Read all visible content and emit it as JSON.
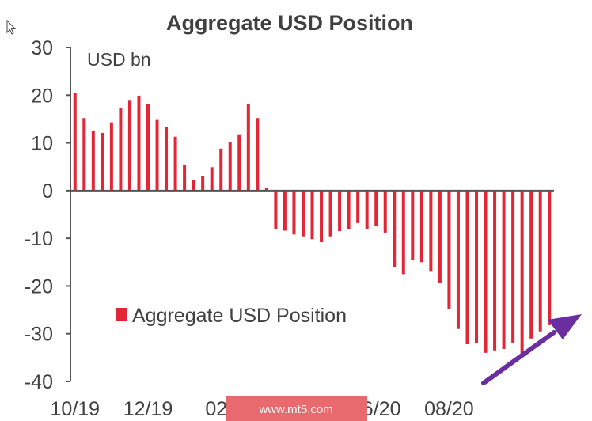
{
  "chart_data": {
    "type": "bar",
    "title": "Aggregate USD Position",
    "unit_label": "USD bn",
    "ylim": [
      -40,
      30
    ],
    "yticks": [
      30,
      20,
      10,
      0,
      -10,
      -20,
      -30,
      -40
    ],
    "xtick_labels": [
      "10/19",
      "12/19",
      "02/20",
      "06/20",
      "08/20"
    ],
    "legend": {
      "label": "Aggregate USD Position",
      "placement": "left"
    },
    "series": [
      {
        "name": "Aggregate USD Position",
        "color": "#e32636",
        "values": [
          20.5,
          15.2,
          12.6,
          12.1,
          14.3,
          17.3,
          19.0,
          19.9,
          18.2,
          14.8,
          13.3,
          11.3,
          5.3,
          2.2,
          3.0,
          4.9,
          8.8,
          10.2,
          11.8,
          18.2,
          15.2,
          0.5,
          -8.0,
          -8.4,
          -9.2,
          -9.6,
          -10.2,
          -10.8,
          -9.6,
          -8.5,
          -8.0,
          -6.8,
          -8.0,
          -7.5,
          -8.8,
          -16.0,
          -17.5,
          -14.5,
          -15.0,
          -17.0,
          -19.3,
          -24.8,
          -29.0,
          -32.2,
          -32.0,
          -34.0,
          -33.5,
          -33.2,
          -32.0,
          -34.5,
          -31.0,
          -29.5,
          -28.2
        ]
      }
    ]
  },
  "watermark": {
    "text": "www.mt5.com",
    "color": "#e86a6f"
  },
  "annotation": {
    "arrow_color": "#6a2ea0"
  },
  "colors": {
    "axis": "#555555",
    "text": "#404040"
  }
}
